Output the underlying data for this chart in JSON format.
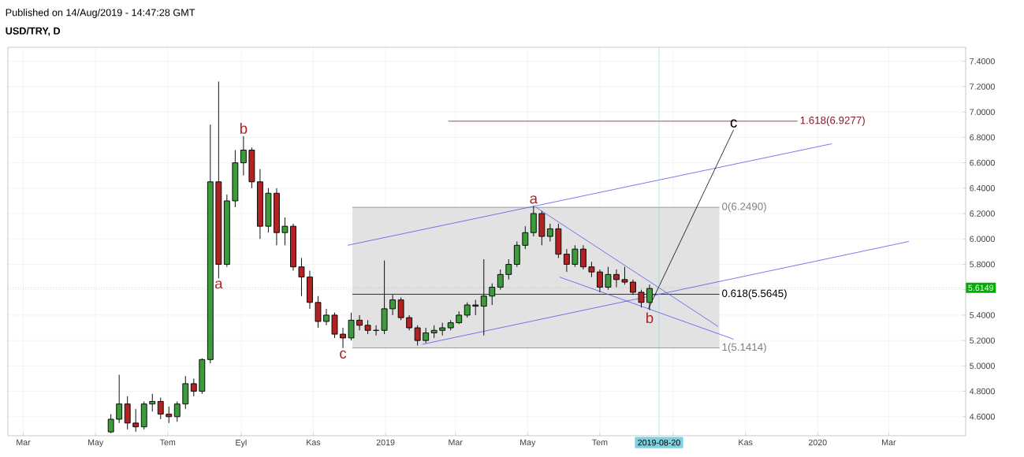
{
  "chart_data": {
    "type": "candlestick",
    "title": "USD/TRY, D",
    "annotations": [
      "Published on 14/Aug/2019 - 14:47:28 GMT",
      {
        "text": "b",
        "x": "2018-09-03",
        "y": 6.81
      },
      {
        "text": "a",
        "x": "2018-08-13",
        "y": 5.69
      },
      {
        "text": "c",
        "x": "2018-11-26",
        "y": 5.14
      },
      {
        "text": "a",
        "x": "2019-05-06",
        "y": 6.26
      },
      {
        "text": "b",
        "x": "2019-08-12",
        "y": 5.44
      },
      {
        "text": "c",
        "x": "2019-10-22",
        "y": 6.86
      },
      {
        "text": "0(6.2490)",
        "x": "2019-10-10",
        "y": 6.249
      },
      {
        "text": "0.618(5.5645)",
        "x": "2019-10-10",
        "y": 5.5645
      },
      {
        "text": "1(5.1414)",
        "x": "2019-10-10",
        "y": 5.1414
      },
      {
        "text": "1.618(6.9277)",
        "x": "2019-12-15",
        "y": 6.9277
      }
    ],
    "x": [
      "2018-05-14",
      "2018-05-21",
      "2018-05-28",
      "2018-06-04",
      "2018-06-11",
      "2018-06-18",
      "2018-06-25",
      "2018-07-02",
      "2018-07-09",
      "2018-07-16",
      "2018-07-23",
      "2018-07-30",
      "2018-08-06",
      "2018-08-13",
      "2018-08-20",
      "2018-08-27",
      "2018-09-03",
      "2018-09-10",
      "2018-09-17",
      "2018-09-24",
      "2018-10-01",
      "2018-10-08",
      "2018-10-15",
      "2018-10-22",
      "2018-10-29",
      "2018-11-05",
      "2018-11-12",
      "2018-11-19",
      "2018-11-26",
      "2018-12-03",
      "2018-12-10",
      "2018-12-17",
      "2018-12-24",
      "2018-12-31",
      "2019-01-07",
      "2019-01-14",
      "2019-01-21",
      "2019-01-28",
      "2019-02-04",
      "2019-02-11",
      "2019-02-18",
      "2019-02-25",
      "2019-03-04",
      "2019-03-11",
      "2019-03-18",
      "2019-03-25",
      "2019-04-01",
      "2019-04-08",
      "2019-04-15",
      "2019-04-22",
      "2019-04-29",
      "2019-05-06",
      "2019-05-13",
      "2019-05-20",
      "2019-05-27",
      "2019-06-03",
      "2019-06-10",
      "2019-06-17",
      "2019-06-24",
      "2019-07-01",
      "2019-07-08",
      "2019-07-15",
      "2019-07-22",
      "2019-07-29",
      "2019-08-05",
      "2019-08-12"
    ],
    "ohlc": [
      [
        4.48,
        4.62,
        4.47,
        4.58
      ],
      [
        4.58,
        4.93,
        4.55,
        4.7
      ],
      [
        4.7,
        4.76,
        4.5,
        4.55
      ],
      [
        4.55,
        4.66,
        4.48,
        4.52
      ],
      [
        4.52,
        4.72,
        4.5,
        4.7
      ],
      [
        4.7,
        4.78,
        4.64,
        4.72
      ],
      [
        4.72,
        4.75,
        4.58,
        4.62
      ],
      [
        4.62,
        4.68,
        4.55,
        4.6
      ],
      [
        4.6,
        4.72,
        4.56,
        4.7
      ],
      [
        4.7,
        4.92,
        4.66,
        4.86
      ],
      [
        4.86,
        4.9,
        4.76,
        4.8
      ],
      [
        4.8,
        5.06,
        4.78,
        5.05
      ],
      [
        5.05,
        6.9,
        5.02,
        6.45
      ],
      [
        6.45,
        7.24,
        5.69,
        5.8
      ],
      [
        5.8,
        6.35,
        5.78,
        6.3
      ],
      [
        6.3,
        6.7,
        6.25,
        6.6
      ],
      [
        6.6,
        6.81,
        6.5,
        6.7
      ],
      [
        6.7,
        6.72,
        6.4,
        6.45
      ],
      [
        6.45,
        6.55,
        6.0,
        6.1
      ],
      [
        6.1,
        6.4,
        6.05,
        6.36
      ],
      [
        6.36,
        6.4,
        5.95,
        6.05
      ],
      [
        6.05,
        6.17,
        5.95,
        6.1
      ],
      [
        6.1,
        6.12,
        5.75,
        5.78
      ],
      [
        5.78,
        5.85,
        5.55,
        5.7
      ],
      [
        5.7,
        5.75,
        5.45,
        5.5
      ],
      [
        5.5,
        5.55,
        5.3,
        5.35
      ],
      [
        5.35,
        5.45,
        5.32,
        5.4
      ],
      [
        5.4,
        5.42,
        5.22,
        5.25
      ],
      [
        5.25,
        5.3,
        5.14,
        5.22
      ],
      [
        5.22,
        5.42,
        5.2,
        5.36
      ],
      [
        5.36,
        5.4,
        5.28,
        5.32
      ],
      [
        5.32,
        5.36,
        5.25,
        5.28
      ],
      [
        5.28,
        5.32,
        5.24,
        5.28
      ],
      [
        5.28,
        5.83,
        5.25,
        5.45
      ],
      [
        5.45,
        5.56,
        5.4,
        5.52
      ],
      [
        5.52,
        5.54,
        5.36,
        5.38
      ],
      [
        5.38,
        5.4,
        5.28,
        5.3
      ],
      [
        5.3,
        5.32,
        5.16,
        5.2
      ],
      [
        5.2,
        5.3,
        5.18,
        5.26
      ],
      [
        5.26,
        5.32,
        5.22,
        5.28
      ],
      [
        5.28,
        5.34,
        5.24,
        5.3
      ],
      [
        5.3,
        5.36,
        5.28,
        5.34
      ],
      [
        5.34,
        5.43,
        5.33,
        5.4
      ],
      [
        5.4,
        5.5,
        5.38,
        5.48
      ],
      [
        5.48,
        5.52,
        5.4,
        5.47
      ],
      [
        5.47,
        5.84,
        5.24,
        5.55
      ],
      [
        5.55,
        5.65,
        5.48,
        5.62
      ],
      [
        5.62,
        5.76,
        5.6,
        5.72
      ],
      [
        5.72,
        5.84,
        5.68,
        5.8
      ],
      [
        5.8,
        5.98,
        5.78,
        5.95
      ],
      [
        5.95,
        6.1,
        5.92,
        6.05
      ],
      [
        6.05,
        6.26,
        6.02,
        6.2
      ],
      [
        6.2,
        6.22,
        5.95,
        6.02
      ],
      [
        6.02,
        6.12,
        5.98,
        6.08
      ],
      [
        6.08,
        6.12,
        5.85,
        5.88
      ],
      [
        5.88,
        5.92,
        5.74,
        5.8
      ],
      [
        5.8,
        5.95,
        5.78,
        5.92
      ],
      [
        5.92,
        5.95,
        5.76,
        5.78
      ],
      [
        5.78,
        5.82,
        5.7,
        5.74
      ],
      [
        5.74,
        5.76,
        5.58,
        5.62
      ],
      [
        5.62,
        5.78,
        5.6,
        5.72
      ],
      [
        5.72,
        5.76,
        5.62,
        5.68
      ],
      [
        5.68,
        5.78,
        5.64,
        5.66
      ],
      [
        5.66,
        5.68,
        5.56,
        5.58
      ],
      [
        5.58,
        5.6,
        5.46,
        5.5
      ],
      [
        5.5,
        5.64,
        5.44,
        5.61
      ]
    ],
    "series": [
      {
        "type": "line",
        "color": "#000000",
        "x": [
          "2018-12-04",
          "2019-10-10"
        ],
        "values": [
          5.5645,
          5.5645
        ],
        "lower": [
          5.1414,
          5.1414
        ],
        "upper": [
          6.249,
          6.249
        ]
      },
      {
        "type": "line",
        "color": "#808080",
        "x": [
          "2018-12-04",
          "2019-10-10"
        ],
        "values": [
          6.249,
          6.249
        ]
      },
      {
        "type": "line",
        "color": "#808080",
        "x": [
          "2018-12-04",
          "2019-10-10"
        ],
        "values": [
          5.1414,
          5.1414
        ]
      },
      {
        "type": "line",
        "color": "#8b1a2b",
        "x": [
          "2019-02-23",
          "2019-12-15"
        ],
        "values": [
          6.9277,
          6.9277
        ]
      },
      {
        "type": "line",
        "color": "#5555ee",
        "x": [
          "2018-11-30",
          "2020-01-13"
        ],
        "values": [
          5.95,
          6.75
        ]
      },
      {
        "type": "line",
        "color": "#5555ee",
        "x": [
          "2019-02-01",
          "2020-03-18"
        ],
        "values": [
          5.17,
          5.98
        ]
      },
      {
        "type": "line",
        "color": "#5555ee",
        "x": [
          "2019-05-08",
          "2019-10-09"
        ],
        "values": [
          6.25,
          5.31
        ]
      },
      {
        "type": "line",
        "color": "#5555ee",
        "x": [
          "2019-05-28",
          "2019-10-22"
        ],
        "values": [
          5.7,
          5.21
        ]
      },
      {
        "type": "line",
        "color": "#000000",
        "x": [
          "2019-08-11",
          "2019-10-22"
        ],
        "values": [
          5.45,
          6.86
        ]
      }
    ],
    "ref_lines": [
      {
        "axis": "y",
        "value": 5.6149,
        "label": "5.6149",
        "color": "#00b000",
        "line_style": "dotted"
      },
      {
        "axis": "x",
        "value": "2019-08-20",
        "label": "2019-08-20",
        "color": "#7fd0e0"
      }
    ],
    "xlim": [
      "2018-02-16",
      "2020-05-05"
    ],
    "xticks": [
      {
        "value": "2018-03-01",
        "label": "Mar"
      },
      {
        "value": "2018-05-01",
        "label": "May"
      },
      {
        "value": "2018-07-01",
        "label": "Tem"
      },
      {
        "value": "2018-09-01",
        "label": "Eyl"
      },
      {
        "value": "2018-11-01",
        "label": "Kas"
      },
      {
        "value": "2019-01-01",
        "label": "2019"
      },
      {
        "value": "2019-03-01",
        "label": "Mar"
      },
      {
        "value": "2019-05-01",
        "label": "May"
      },
      {
        "value": "2019-07-01",
        "label": "Tem"
      },
      {
        "value": "2019-09-01",
        "label": null
      },
      {
        "value": "2019-11-01",
        "label": "Kas"
      },
      {
        "value": "2020-01-01",
        "label": "2020"
      },
      {
        "value": "2020-03-01",
        "label": "Mar"
      }
    ],
    "ylim": [
      4.45,
      7.51
    ],
    "yticks": [
      {
        "value": 4.6,
        "label": "4.6000"
      },
      {
        "value": 4.8,
        "label": "4.8000"
      },
      {
        "value": 5.0,
        "label": "5.0000"
      },
      {
        "value": 5.2,
        "label": "5.2000"
      },
      {
        "value": 5.4,
        "label": "5.4000"
      },
      {
        "value": 5.6,
        "label": null
      },
      {
        "value": 5.8,
        "label": "5.8000"
      },
      {
        "value": 6.0,
        "label": "6.0000"
      },
      {
        "value": 6.2,
        "label": "6.2000"
      },
      {
        "value": 6.4,
        "label": "6.4000"
      },
      {
        "value": 6.6,
        "label": "6.6000"
      },
      {
        "value": 6.8,
        "label": "6.8000"
      },
      {
        "value": 7.0,
        "label": "7.0000"
      },
      {
        "value": 7.2,
        "label": "7.2000"
      },
      {
        "value": 7.4,
        "label": "7.4000"
      }
    ],
    "grid": true
  }
}
